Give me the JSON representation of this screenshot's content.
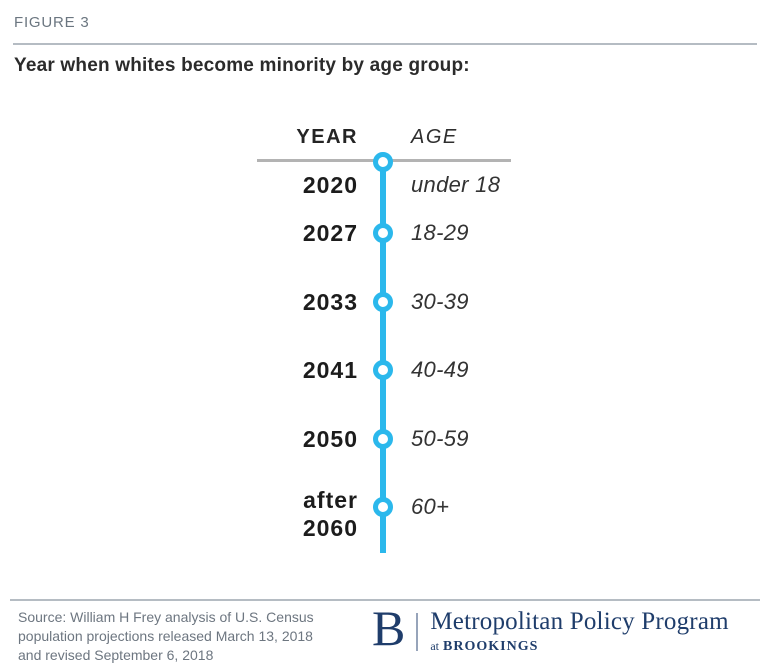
{
  "figure_label": "FIGURE 3",
  "title": "Year when whites become minority by age group:",
  "chart_data": {
    "type": "table",
    "subtype": "vertical-timeline",
    "title": "Year when whites become minority by age group:",
    "columns": [
      "YEAR",
      "AGE"
    ],
    "rows": [
      [
        "2020",
        "under 18"
      ],
      [
        "2027",
        "18-29"
      ],
      [
        "2033",
        "30-39"
      ],
      [
        "2041",
        "40-49"
      ],
      [
        "2050",
        "50-59"
      ],
      [
        "after 2060",
        "60+"
      ]
    ],
    "orientation": "vertical",
    "marker": "open-circle",
    "accent_color": "#2BB8EC",
    "axis_rule_color": "#B3B3B3"
  },
  "footer": {
    "source_lines": [
      "Source: William H Frey analysis of U.S. Census",
      "population projections released March 13, 2018",
      "and revised September 6, 2018"
    ],
    "logo": {
      "initial": "B",
      "program": "Metropolitan Policy Program",
      "at_prefix": "at",
      "org": "BROOKINGS"
    }
  },
  "colors": {
    "accent_blue": "#2BB8EC",
    "brand_navy": "#1F3D6B",
    "rule_gray": "#B5BCC3",
    "title_dark": "#2B2B2B",
    "muted_gray": "#6D7680"
  }
}
